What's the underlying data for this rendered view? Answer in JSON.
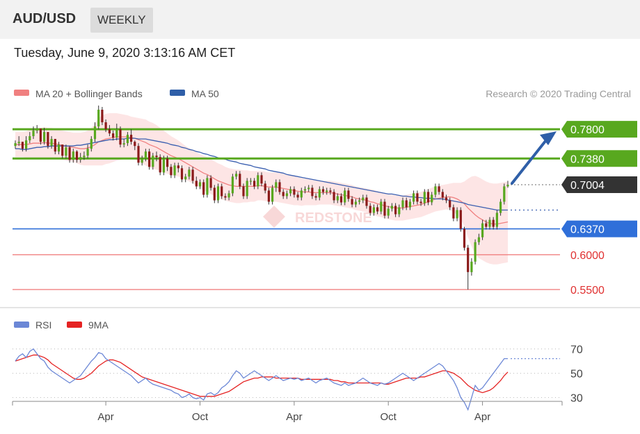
{
  "header": {
    "pair": "AUD/USD",
    "timeframe": "WEEKLY"
  },
  "date_text": "Tuesday, June 9, 2020 3:13:16 AM CET",
  "legend": {
    "ma20": "MA 20 + Bollinger Bands",
    "ma50": "MA 50",
    "credit": "Research © 2020 Trading Central",
    "rsi": "RSI",
    "rsi_ma": "9MA"
  },
  "watermark": "REDSTONE",
  "colors": {
    "green": "#58a81f",
    "blue": "#2f6fd9",
    "red": "#f08080",
    "dark": "#333333",
    "band": "#fde0e0",
    "ma50": "#3a5fb0",
    "arrow": "#2f5fa8",
    "rsi": "#6b87d6",
    "rsi_ma": "#e52222"
  },
  "chart_data": [
    {
      "type": "candlestick",
      "y_range": [
        0.535,
        0.806
      ],
      "x_tick_labels": [
        "Apr",
        "Oct",
        "Apr",
        "Oct",
        "Apr"
      ],
      "levels": [
        {
          "value": 0.78,
          "label": "0.7800",
          "kind": "resistance",
          "color": "#58a81f"
        },
        {
          "value": 0.738,
          "label": "0.7380",
          "kind": "resistance",
          "color": "#58a81f"
        },
        {
          "value": 0.7004,
          "label": "0.7004",
          "kind": "current",
          "color": "#333333"
        },
        {
          "value": 0.637,
          "label": "0.6370",
          "kind": "pivot",
          "color": "#2f6fd9"
        },
        {
          "value": 0.6,
          "label": "0.6000",
          "kind": "support",
          "color": "#f08080"
        },
        {
          "value": 0.55,
          "label": "0.5500",
          "kind": "support",
          "color": "#f08080"
        }
      ],
      "close": [
        0.76,
        0.762,
        0.752,
        0.764,
        0.77,
        0.778,
        0.781,
        0.762,
        0.776,
        0.756,
        0.766,
        0.748,
        0.758,
        0.742,
        0.754,
        0.736,
        0.748,
        0.736,
        0.74,
        0.742,
        0.752,
        0.766,
        0.784,
        0.808,
        0.79,
        0.78,
        0.774,
        0.768,
        0.78,
        0.758,
        0.76,
        0.772,
        0.762,
        0.756,
        0.732,
        0.738,
        0.748,
        0.726,
        0.742,
        0.74,
        0.718,
        0.738,
        0.726,
        0.714,
        0.728,
        0.724,
        0.708,
        0.712,
        0.722,
        0.706,
        0.698,
        0.704,
        0.686,
        0.71,
        0.696,
        0.678,
        0.698,
        0.684,
        0.682,
        0.688,
        0.712,
        0.716,
        0.698,
        0.684,
        0.706,
        0.706,
        0.698,
        0.714,
        0.702,
        0.692,
        0.676,
        0.696,
        0.704,
        0.69,
        0.684,
        0.688,
        0.694,
        0.686,
        0.682,
        0.692,
        0.694,
        0.696,
        0.684,
        0.682,
        0.694,
        0.69,
        0.692,
        0.69,
        0.678,
        0.684,
        0.675,
        0.692,
        0.68,
        0.672,
        0.676,
        0.678,
        0.682,
        0.67,
        0.66,
        0.668,
        0.662,
        0.676,
        0.656,
        0.666,
        0.67,
        0.658,
        0.668,
        0.678,
        0.668,
        0.676,
        0.688,
        0.676,
        0.674,
        0.69,
        0.675,
        0.686,
        0.698,
        0.69,
        0.682,
        0.678,
        0.668,
        0.652,
        0.664,
        0.637,
        0.61,
        0.575,
        0.59,
        0.618,
        0.625,
        0.645,
        0.64,
        0.65,
        0.64,
        0.66,
        0.676,
        0.698,
        0.7004
      ],
      "high": [
        0.764,
        0.77,
        0.762,
        0.77,
        0.776,
        0.784,
        0.786,
        0.778,
        0.782,
        0.77,
        0.77,
        0.766,
        0.762,
        0.758,
        0.758,
        0.756,
        0.752,
        0.75,
        0.746,
        0.748,
        0.758,
        0.77,
        0.79,
        0.814,
        0.812,
        0.794,
        0.786,
        0.778,
        0.788,
        0.784,
        0.766,
        0.776,
        0.78,
        0.764,
        0.76,
        0.742,
        0.752,
        0.752,
        0.746,
        0.748,
        0.744,
        0.742,
        0.742,
        0.73,
        0.732,
        0.732,
        0.728,
        0.716,
        0.726,
        0.726,
        0.712,
        0.708,
        0.708,
        0.714,
        0.714,
        0.7,
        0.702,
        0.702,
        0.688,
        0.692,
        0.716,
        0.72,
        0.72,
        0.702,
        0.71,
        0.71,
        0.71,
        0.718,
        0.718,
        0.706,
        0.696,
        0.7,
        0.708,
        0.708,
        0.694,
        0.692,
        0.698,
        0.698,
        0.69,
        0.696,
        0.698,
        0.7,
        0.7,
        0.688,
        0.698,
        0.698,
        0.696,
        0.696,
        0.694,
        0.688,
        0.688,
        0.696,
        0.696,
        0.684,
        0.68,
        0.682,
        0.686,
        0.686,
        0.674,
        0.672,
        0.672,
        0.68,
        0.68,
        0.67,
        0.674,
        0.674,
        0.672,
        0.682,
        0.682,
        0.68,
        0.692,
        0.692,
        0.68,
        0.694,
        0.694,
        0.69,
        0.702,
        0.702,
        0.694,
        0.686,
        0.682,
        0.672,
        0.668,
        0.668,
        0.64,
        0.614,
        0.595,
        0.622,
        0.63,
        0.65,
        0.65,
        0.654,
        0.654,
        0.664,
        0.68,
        0.702,
        0.706
      ],
      "low": [
        0.752,
        0.756,
        0.748,
        0.748,
        0.76,
        0.766,
        0.774,
        0.758,
        0.758,
        0.752,
        0.752,
        0.744,
        0.744,
        0.738,
        0.738,
        0.732,
        0.732,
        0.732,
        0.732,
        0.736,
        0.738,
        0.748,
        0.762,
        0.78,
        0.786,
        0.776,
        0.77,
        0.764,
        0.764,
        0.754,
        0.754,
        0.756,
        0.758,
        0.75,
        0.728,
        0.728,
        0.734,
        0.722,
        0.722,
        0.734,
        0.714,
        0.714,
        0.72,
        0.71,
        0.71,
        0.718,
        0.704,
        0.704,
        0.708,
        0.702,
        0.694,
        0.694,
        0.682,
        0.682,
        0.692,
        0.674,
        0.674,
        0.68,
        0.678,
        0.678,
        0.684,
        0.708,
        0.694,
        0.68,
        0.68,
        0.7,
        0.694,
        0.694,
        0.698,
        0.688,
        0.672,
        0.672,
        0.69,
        0.686,
        0.68,
        0.68,
        0.684,
        0.682,
        0.678,
        0.678,
        0.688,
        0.69,
        0.68,
        0.678,
        0.678,
        0.686,
        0.686,
        0.686,
        0.674,
        0.674,
        0.671,
        0.671,
        0.676,
        0.668,
        0.668,
        0.672,
        0.674,
        0.666,
        0.656,
        0.656,
        0.658,
        0.658,
        0.652,
        0.652,
        0.662,
        0.654,
        0.654,
        0.664,
        0.664,
        0.664,
        0.672,
        0.672,
        0.67,
        0.67,
        0.671,
        0.671,
        0.682,
        0.686,
        0.678,
        0.674,
        0.664,
        0.648,
        0.648,
        0.633,
        0.606,
        0.55,
        0.57,
        0.586,
        0.614,
        0.621,
        0.636,
        0.636,
        0.636,
        0.636,
        0.656,
        0.672,
        0.696
      ],
      "ma50": [
        0.752,
        0.752,
        0.751,
        0.751,
        0.752,
        0.753,
        0.754,
        0.754,
        0.755,
        0.755,
        0.756,
        0.756,
        0.756,
        0.756,
        0.756,
        0.756,
        0.756,
        0.757,
        0.757,
        0.758,
        0.759,
        0.76,
        0.761,
        0.762,
        0.763,
        0.764,
        0.765,
        0.765,
        0.766,
        0.766,
        0.766,
        0.767,
        0.767,
        0.767,
        0.766,
        0.766,
        0.766,
        0.765,
        0.764,
        0.763,
        0.762,
        0.761,
        0.76,
        0.758,
        0.757,
        0.756,
        0.754,
        0.753,
        0.751,
        0.75,
        0.748,
        0.747,
        0.745,
        0.744,
        0.742,
        0.741,
        0.739,
        0.738,
        0.737,
        0.735,
        0.734,
        0.733,
        0.731,
        0.73,
        0.729,
        0.728,
        0.726,
        0.725,
        0.724,
        0.723,
        0.721,
        0.72,
        0.719,
        0.718,
        0.717,
        0.715,
        0.714,
        0.713,
        0.712,
        0.711,
        0.71,
        0.709,
        0.708,
        0.707,
        0.706,
        0.705,
        0.704,
        0.703,
        0.702,
        0.701,
        0.7,
        0.699,
        0.698,
        0.697,
        0.696,
        0.695,
        0.694,
        0.693,
        0.692,
        0.691,
        0.69,
        0.689,
        0.688,
        0.687,
        0.687,
        0.686,
        0.685,
        0.684,
        0.684,
        0.683,
        0.683,
        0.682,
        0.682,
        0.681,
        0.681,
        0.681,
        0.68,
        0.68,
        0.68,
        0.679,
        0.678,
        0.677,
        0.676,
        0.675,
        0.674,
        0.672,
        0.671,
        0.67,
        0.669,
        0.668,
        0.667,
        0.666,
        0.665,
        0.664,
        0.664,
        0.664,
        0.664
      ],
      "ma20": [
        0.758,
        0.758,
        0.758,
        0.758,
        0.759,
        0.76,
        0.76,
        0.76,
        0.761,
        0.76,
        0.76,
        0.759,
        0.758,
        0.757,
        0.756,
        0.755,
        0.754,
        0.753,
        0.752,
        0.752,
        0.753,
        0.755,
        0.758,
        0.762,
        0.764,
        0.766,
        0.767,
        0.768,
        0.769,
        0.769,
        0.769,
        0.769,
        0.768,
        0.767,
        0.765,
        0.763,
        0.761,
        0.758,
        0.756,
        0.754,
        0.751,
        0.748,
        0.745,
        0.742,
        0.74,
        0.738,
        0.735,
        0.732,
        0.729,
        0.726,
        0.723,
        0.72,
        0.717,
        0.715,
        0.712,
        0.709,
        0.706,
        0.704,
        0.702,
        0.7,
        0.699,
        0.698,
        0.698,
        0.698,
        0.698,
        0.698,
        0.698,
        0.699,
        0.699,
        0.698,
        0.697,
        0.697,
        0.697,
        0.696,
        0.695,
        0.694,
        0.693,
        0.692,
        0.691,
        0.69,
        0.69,
        0.69,
        0.689,
        0.689,
        0.689,
        0.689,
        0.689,
        0.689,
        0.688,
        0.687,
        0.686,
        0.685,
        0.684,
        0.683,
        0.681,
        0.68,
        0.679,
        0.678,
        0.676,
        0.675,
        0.673,
        0.672,
        0.67,
        0.669,
        0.668,
        0.667,
        0.667,
        0.667,
        0.668,
        0.669,
        0.67,
        0.671,
        0.672,
        0.674,
        0.676,
        0.678,
        0.68,
        0.681,
        0.682,
        0.683,
        0.683,
        0.682,
        0.68,
        0.677,
        0.673,
        0.667,
        0.662,
        0.657,
        0.653,
        0.65,
        0.647,
        0.645,
        0.644,
        0.644,
        0.645,
        0.646,
        0.647
      ],
      "bb_width": [
        0.018,
        0.018,
        0.018,
        0.019,
        0.02,
        0.021,
        0.022,
        0.022,
        0.022,
        0.022,
        0.022,
        0.022,
        0.021,
        0.021,
        0.021,
        0.021,
        0.021,
        0.022,
        0.023,
        0.024,
        0.025,
        0.027,
        0.03,
        0.034,
        0.036,
        0.036,
        0.036,
        0.035,
        0.034,
        0.033,
        0.032,
        0.031,
        0.03,
        0.03,
        0.031,
        0.032,
        0.033,
        0.033,
        0.033,
        0.032,
        0.031,
        0.03,
        0.029,
        0.028,
        0.027,
        0.026,
        0.025,
        0.024,
        0.024,
        0.024,
        0.024,
        0.024,
        0.025,
        0.025,
        0.025,
        0.025,
        0.025,
        0.025,
        0.024,
        0.024,
        0.024,
        0.024,
        0.024,
        0.023,
        0.023,
        0.022,
        0.022,
        0.021,
        0.021,
        0.021,
        0.021,
        0.021,
        0.021,
        0.021,
        0.021,
        0.021,
        0.021,
        0.021,
        0.02,
        0.02,
        0.019,
        0.019,
        0.018,
        0.018,
        0.017,
        0.017,
        0.017,
        0.017,
        0.017,
        0.017,
        0.017,
        0.017,
        0.017,
        0.017,
        0.017,
        0.017,
        0.017,
        0.017,
        0.018,
        0.018,
        0.018,
        0.018,
        0.018,
        0.018,
        0.018,
        0.018,
        0.018,
        0.018,
        0.018,
        0.018,
        0.018,
        0.018,
        0.018,
        0.018,
        0.018,
        0.018,
        0.018,
        0.018,
        0.018,
        0.018,
        0.019,
        0.021,
        0.023,
        0.026,
        0.032,
        0.042,
        0.05,
        0.056,
        0.058,
        0.058,
        0.058,
        0.058,
        0.058,
        0.058,
        0.058,
        0.058,
        0.058
      ]
    },
    {
      "type": "line",
      "y_range": [
        20,
        80
      ],
      "y_ticks": [
        70,
        50,
        30
      ],
      "series": [
        {
          "name": "RSI",
          "values": [
            60,
            64,
            66,
            63,
            68,
            70,
            66,
            62,
            60,
            55,
            52,
            50,
            48,
            46,
            44,
            42,
            44,
            46,
            48,
            52,
            56,
            60,
            63,
            67,
            66,
            62,
            60,
            58,
            56,
            54,
            52,
            50,
            48,
            45,
            42,
            44,
            46,
            43,
            41,
            40,
            39,
            38,
            37,
            36,
            34,
            33,
            30,
            31,
            33,
            30,
            29,
            30,
            28,
            33,
            34,
            32,
            34,
            38,
            40,
            43,
            48,
            52,
            50,
            46,
            48,
            50,
            52,
            50,
            48,
            46,
            44,
            46,
            48,
            46,
            44,
            45,
            46,
            45,
            46,
            44,
            45,
            46,
            44,
            42,
            44,
            45,
            46,
            44,
            42,
            41,
            40,
            42,
            40,
            41,
            42,
            44,
            46,
            44,
            42,
            41,
            40,
            42,
            41,
            42,
            44,
            46,
            48,
            50,
            48,
            46,
            44,
            46,
            48,
            50,
            52,
            54,
            56,
            58,
            56,
            52,
            48,
            44,
            38,
            30,
            26,
            20,
            30,
            40,
            36,
            38,
            42,
            46,
            50,
            54,
            58,
            62,
            62
          ]
        },
        {
          "name": "9MA",
          "values": [
            60,
            61,
            62,
            63,
            64,
            65,
            65,
            64,
            63,
            61,
            58,
            56,
            54,
            52,
            50,
            48,
            46,
            45,
            45,
            46,
            48,
            50,
            53,
            56,
            58,
            60,
            61,
            61,
            60,
            59,
            57,
            55,
            53,
            51,
            49,
            47,
            46,
            45,
            44,
            43,
            42,
            41,
            40,
            39,
            38,
            37,
            36,
            35,
            34,
            33,
            32,
            31,
            31,
            31,
            31,
            31,
            32,
            33,
            34,
            35,
            37,
            39,
            41,
            43,
            44,
            45,
            46,
            46,
            47,
            47,
            47,
            47,
            46,
            46,
            46,
            46,
            46,
            46,
            46,
            45,
            45,
            45,
            45,
            45,
            45,
            45,
            45,
            45,
            44,
            44,
            43,
            43,
            42,
            42,
            42,
            42,
            42,
            42,
            42,
            42,
            42,
            42,
            41,
            41,
            42,
            43,
            44,
            45,
            46,
            46,
            46,
            46,
            47,
            47,
            48,
            49,
            50,
            51,
            52,
            52,
            51,
            50,
            48,
            46,
            43,
            40,
            38,
            36,
            35,
            34,
            35,
            36,
            38,
            41,
            44,
            48,
            51
          ]
        }
      ]
    }
  ]
}
